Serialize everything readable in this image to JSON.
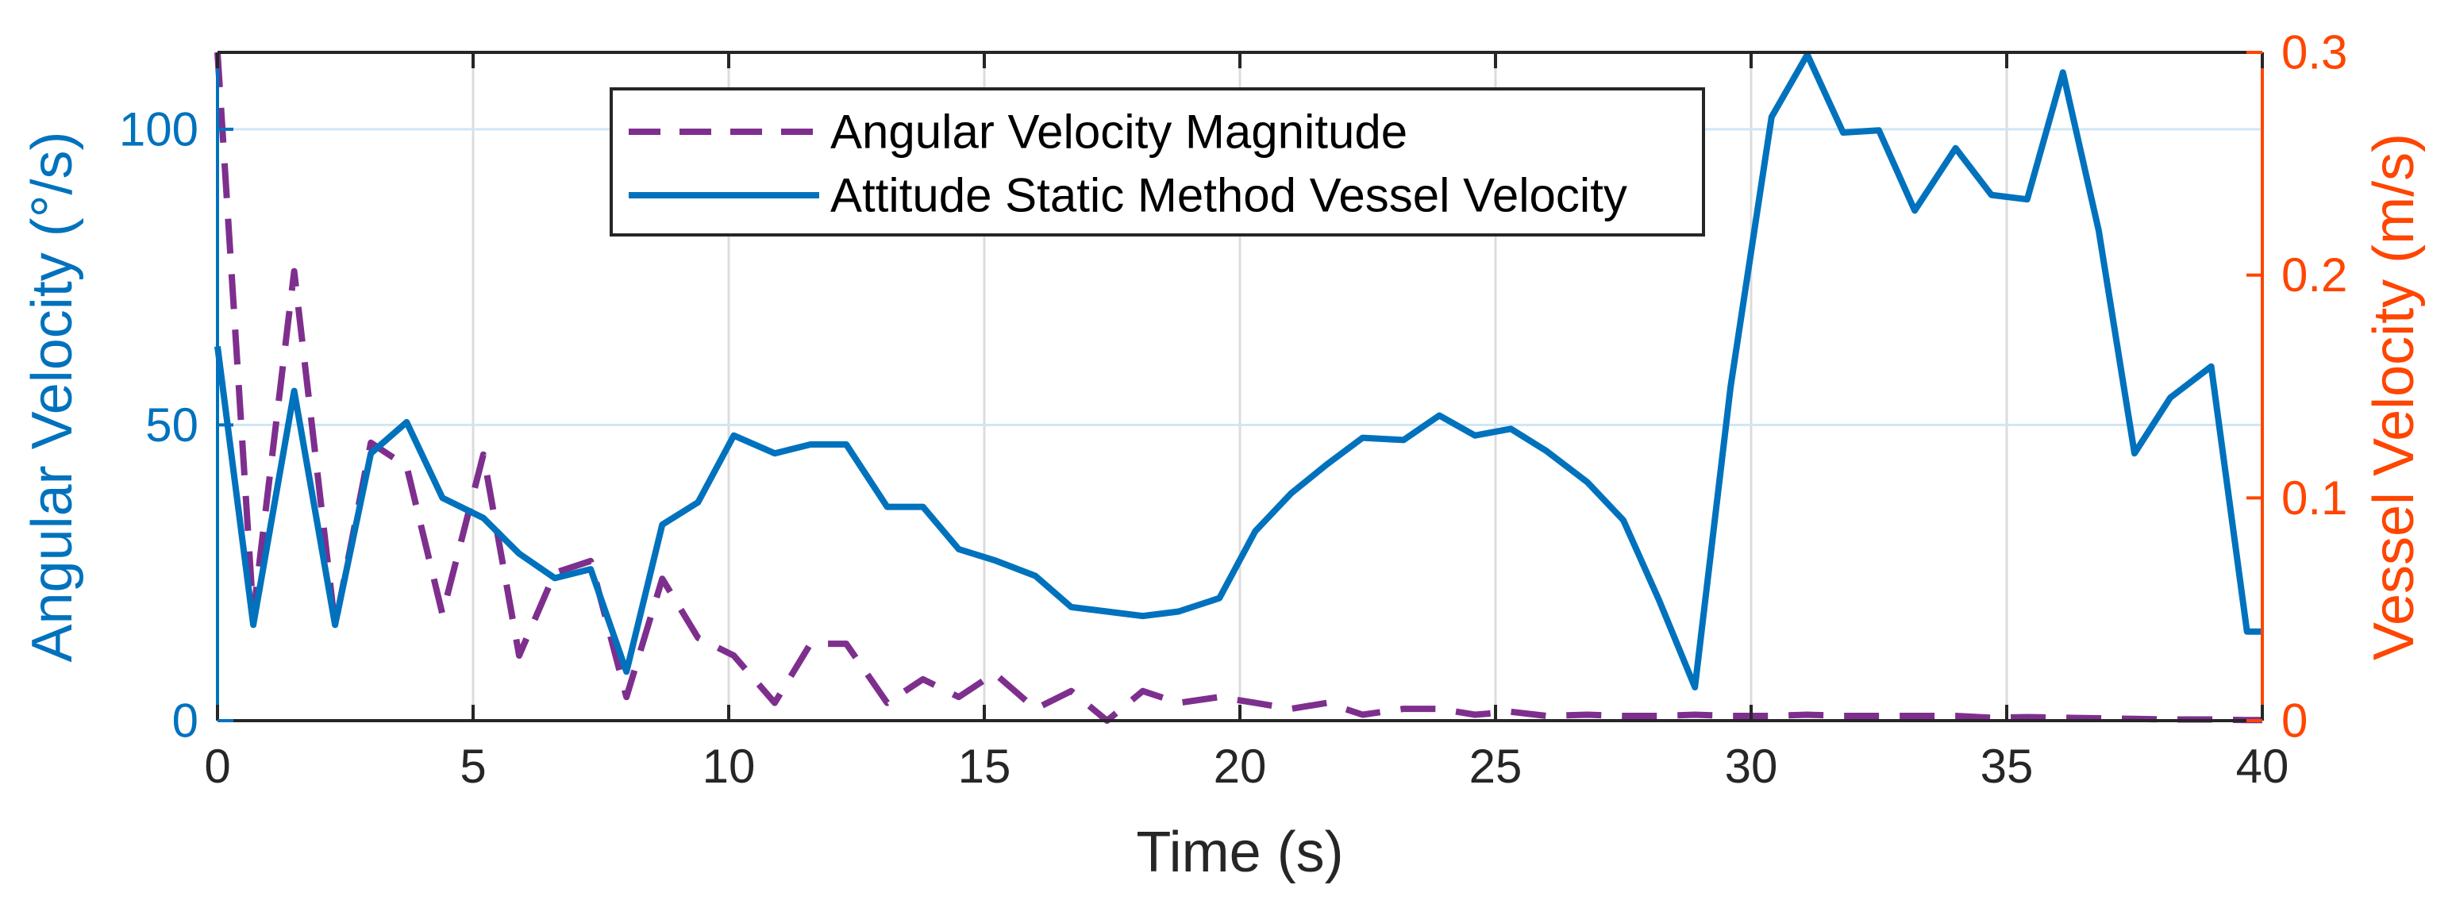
{
  "chart_data": {
    "type": "line",
    "xlabel": "Time (s)",
    "ylabel_left": "Angular Velocity (°/s)",
    "ylabel_right": "Vessel Velocity (m/s)",
    "xlim": [
      0,
      40
    ],
    "ylim_left": [
      0,
      113
    ],
    "ylim_right": [
      0,
      0.3
    ],
    "xticks": [
      0,
      5,
      10,
      15,
      20,
      25,
      30,
      35,
      40
    ],
    "yticks_left": [
      0,
      50,
      100
    ],
    "yticks_right": [
      0,
      0.1,
      0.2,
      0.3
    ],
    "yticks_right_labels": [
      "0",
      "0.1",
      "0.2",
      "0.3"
    ],
    "grid": true,
    "legend_position": "top-center",
    "colors": {
      "left_axis": "#0072BD",
      "right_axis": "#FF4500",
      "angular": "#7E2F8E",
      "vessel": "#0072BD"
    },
    "series": [
      {
        "name": "Angular Velocity Magnitude",
        "axis": "left",
        "style": "dashed",
        "x": [
          0,
          0.7,
          1.5,
          2.3,
          3,
          3.7,
          4.4,
          5.2,
          5.9,
          6.6,
          7.3,
          8,
          8.7,
          9.4,
          10.1,
          10.9,
          11.6,
          12.3,
          13.1,
          13.8,
          14.5,
          15.2,
          16,
          16.7,
          17.4,
          18.1,
          18.8,
          19.6,
          20.3,
          21,
          21.7,
          22.4,
          23.2,
          23.9,
          24.6,
          25.3,
          26,
          26.8,
          27.5,
          28.2,
          28.9,
          29.6,
          30.4,
          31.1,
          31.8,
          32.5,
          33.2,
          34,
          34.7,
          35.4,
          36.1,
          36.8,
          37.5,
          38.2,
          39,
          39.7,
          40
        ],
        "y": [
          113,
          18,
          76,
          16,
          47,
          43,
          18,
          45,
          11,
          25,
          27,
          4,
          24,
          14,
          11,
          3,
          13,
          13,
          3,
          7,
          4,
          8,
          2,
          5,
          0,
          5,
          3,
          4,
          3,
          2,
          3,
          1,
          2,
          2,
          1,
          1.5,
          0.8,
          1,
          0.8,
          0.8,
          1,
          0.8,
          0.8,
          1,
          0.8,
          0.8,
          0.8,
          0.8,
          0.5,
          0.6,
          0.5,
          0.4,
          0.3,
          0.2,
          0.2,
          0.1,
          0.1
        ]
      },
      {
        "name": "Attitude Static Method Vessel Velocity",
        "axis": "right",
        "style": "solid",
        "x": [
          0,
          0.7,
          1.5,
          2.3,
          3,
          3.7,
          4.4,
          5.2,
          5.9,
          6.6,
          7.3,
          8,
          8.7,
          9.4,
          10.1,
          10.9,
          11.6,
          12.3,
          13.1,
          13.8,
          14.5,
          15.2,
          16,
          16.7,
          17.4,
          18.1,
          18.8,
          19.6,
          20.3,
          21,
          21.7,
          22.4,
          23.2,
          23.9,
          24.6,
          25.3,
          26,
          26.8,
          27.5,
          28.2,
          28.9,
          29.6,
          30.4,
          31.1,
          31.8,
          32.5,
          33.2,
          34,
          34.7,
          35.4,
          36.1,
          36.8,
          37.5,
          38.2,
          39,
          39.7,
          40
        ],
        "y": [
          0.168,
          0.043,
          0.148,
          0.043,
          0.12,
          0.134,
          0.1,
          0.091,
          0.075,
          0.064,
          0.068,
          0.022,
          0.088,
          0.098,
          0.128,
          0.12,
          0.124,
          0.124,
          0.096,
          0.096,
          0.077,
          0.072,
          0.065,
          0.051,
          0.049,
          0.047,
          0.049,
          0.055,
          0.085,
          0.102,
          0.115,
          0.127,
          0.126,
          0.137,
          0.128,
          0.131,
          0.121,
          0.107,
          0.09,
          0.054,
          0.015,
          0.15,
          0.271,
          0.299,
          0.264,
          0.265,
          0.229,
          0.257,
          0.236,
          0.234,
          0.291,
          0.22,
          0.12,
          0.145,
          0.159,
          0.04,
          0.04
        ]
      }
    ]
  }
}
